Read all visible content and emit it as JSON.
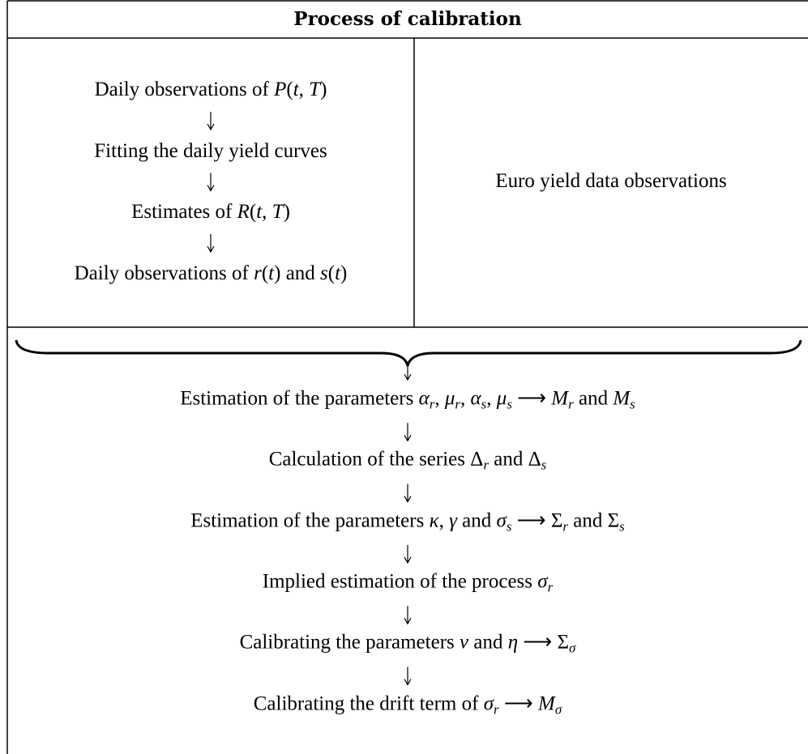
{
  "title": "Process of calibration",
  "left_steps": [
    [
      {
        "t": "Daily observations of "
      },
      {
        "i": "P"
      },
      {
        "t": "("
      },
      {
        "i": "t"
      },
      {
        "t": ", "
      },
      {
        "i": "T"
      },
      {
        "t": ")"
      }
    ],
    [
      {
        "t": "Fitting the daily yield curves"
      }
    ],
    [
      {
        "t": "Estimates of "
      },
      {
        "i": "R"
      },
      {
        "t": "("
      },
      {
        "i": "t"
      },
      {
        "t": ", "
      },
      {
        "i": "T"
      },
      {
        "t": ")"
      }
    ],
    [
      {
        "t": "Daily observations of "
      },
      {
        "i": "r"
      },
      {
        "t": "("
      },
      {
        "i": "t"
      },
      {
        "t": ") and "
      },
      {
        "i": "s"
      },
      {
        "t": "("
      },
      {
        "i": "t"
      },
      {
        "t": ")"
      }
    ]
  ],
  "right_text": "Euro yield data observations",
  "bottom_steps": [
    [
      {
        "t": "Estimation of the parameters "
      },
      {
        "i": "α"
      },
      {
        "s": "r"
      },
      {
        "t": ", "
      },
      {
        "i": "μ"
      },
      {
        "s": "r"
      },
      {
        "t": ", "
      },
      {
        "i": "α"
      },
      {
        "s": "s"
      },
      {
        "t": ", "
      },
      {
        "i": "μ"
      },
      {
        "s": "s"
      },
      {
        "t": " ⟶ "
      },
      {
        "i": "M"
      },
      {
        "s": "r"
      },
      {
        "t": " and "
      },
      {
        "i": "M"
      },
      {
        "s": "s"
      }
    ],
    [
      {
        "t": "Calculation of the series Δ"
      },
      {
        "s": "r"
      },
      {
        "t": " and Δ"
      },
      {
        "s": "s"
      }
    ],
    [
      {
        "t": "Estimation of the parameters "
      },
      {
        "i": "κ"
      },
      {
        "t": ", "
      },
      {
        "i": "γ"
      },
      {
        "t": " and "
      },
      {
        "i": "σ"
      },
      {
        "s": "s"
      },
      {
        "t": " ⟶ Σ"
      },
      {
        "s": "r"
      },
      {
        "t": " and Σ"
      },
      {
        "s": "s"
      }
    ],
    [
      {
        "t": "Implied estimation of the process "
      },
      {
        "i": "σ"
      },
      {
        "s": "r"
      }
    ],
    [
      {
        "t": "Calibrating the parameters "
      },
      {
        "i": "ν"
      },
      {
        "t": " and "
      },
      {
        "i": "η"
      },
      {
        "t": " ⟶ Σ"
      },
      {
        "s": "σ"
      }
    ],
    [
      {
        "t": "Calibrating the drift term of "
      },
      {
        "i": "σ"
      },
      {
        "s": "r"
      },
      {
        "t": " ⟶ "
      },
      {
        "i": "M"
      },
      {
        "s": "σ"
      }
    ]
  ]
}
